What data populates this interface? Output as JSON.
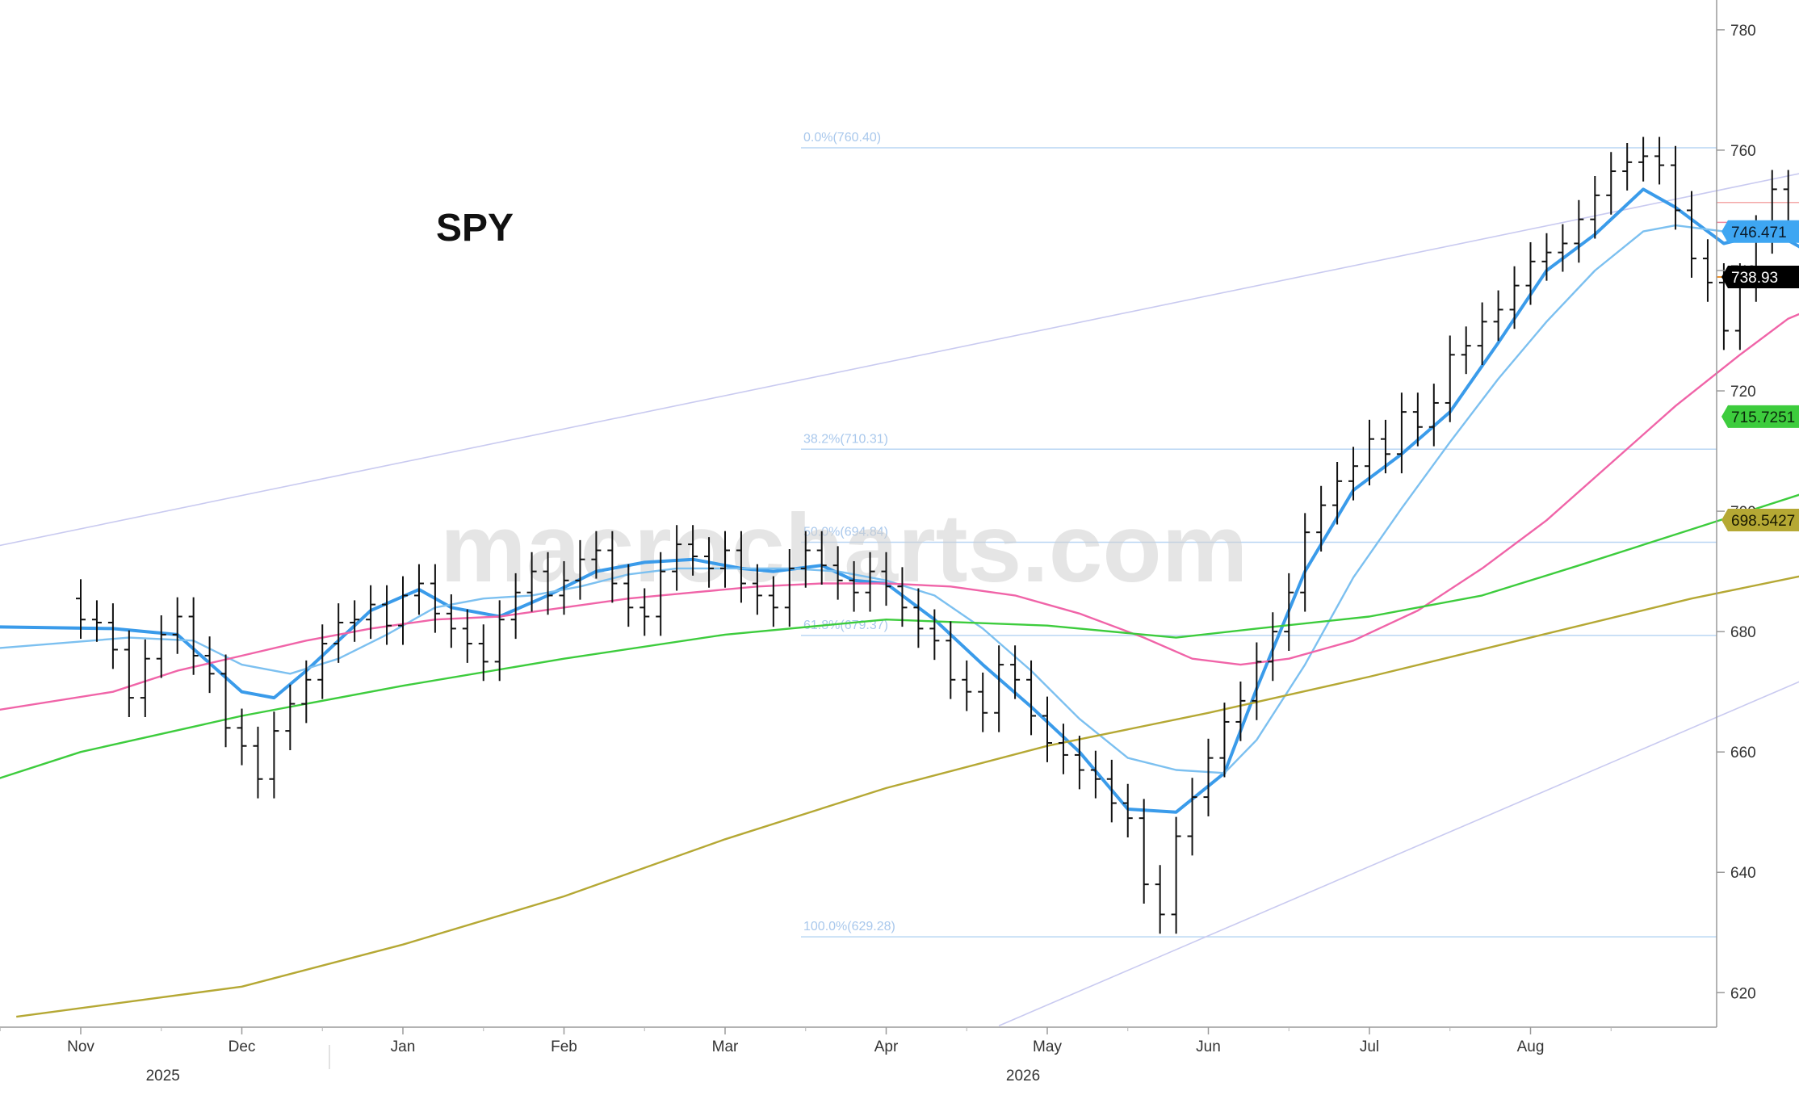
{
  "watermark": "macrocharts.com",
  "chart_data": {
    "type": "line",
    "title": "SPY",
    "ylim": [
      614,
      782
    ],
    "y_ticks": [
      620,
      640,
      660,
      680,
      700,
      720,
      740,
      760,
      780
    ],
    "x_month_labels": [
      "Nov",
      "Dec",
      "Jan",
      "Feb",
      "Mar",
      "Apr",
      "May",
      "Jun",
      "Jul",
      "Aug"
    ],
    "x_year_labels": [
      "2025",
      "2026"
    ],
    "grid": false,
    "price_bars": {
      "name": "SPY price bars",
      "close": [
        [
          -1.1,
          685.5
        ],
        [
          0.0,
          682.0
        ],
        [
          0.1,
          681.5
        ],
        [
          0.2,
          677.0
        ],
        [
          0.3,
          669.0
        ],
        [
          0.4,
          675.5
        ],
        [
          0.5,
          679.5
        ],
        [
          0.6,
          682.5
        ],
        [
          0.7,
          676.0
        ],
        [
          0.8,
          673.0
        ],
        [
          0.9,
          664.0
        ],
        [
          1.0,
          661.0
        ],
        [
          1.1,
          655.5
        ],
        [
          1.2,
          663.5
        ],
        [
          1.3,
          668.0
        ],
        [
          1.4,
          672.0
        ],
        [
          1.5,
          678.0
        ],
        [
          1.6,
          681.5
        ],
        [
          1.7,
          682.0
        ],
        [
          1.8,
          684.5
        ],
        [
          1.9,
          681.0
        ],
        [
          2.0,
          686.0
        ],
        [
          2.1,
          688.0
        ],
        [
          2.2,
          683.0
        ],
        [
          2.3,
          680.5
        ],
        [
          2.4,
          678.0
        ],
        [
          2.5,
          675.0
        ],
        [
          2.6,
          682.0
        ],
        [
          2.7,
          686.5
        ],
        [
          2.8,
          690.0
        ],
        [
          2.9,
          686.0
        ],
        [
          3.0,
          688.5
        ],
        [
          3.1,
          692.0
        ],
        [
          3.2,
          693.5
        ],
        [
          3.3,
          688.0
        ],
        [
          3.4,
          684.0
        ],
        [
          3.5,
          682.5
        ],
        [
          3.6,
          690.0
        ],
        [
          3.7,
          694.5
        ],
        [
          3.8,
          692.5
        ],
        [
          3.9,
          690.5
        ],
        [
          4.0,
          693.5
        ],
        [
          4.1,
          688.0
        ],
        [
          4.2,
          686.0
        ],
        [
          4.3,
          684.0
        ],
        [
          4.4,
          690.5
        ],
        [
          4.5,
          693.5
        ],
        [
          4.6,
          691.0
        ],
        [
          4.7,
          688.5
        ],
        [
          4.8,
          686.5
        ],
        [
          4.9,
          690.0
        ],
        [
          5.0,
          687.5
        ],
        [
          5.1,
          684.0
        ],
        [
          5.2,
          680.5
        ],
        [
          5.3,
          678.5
        ],
        [
          5.4,
          672.0
        ],
        [
          5.5,
          670.0
        ],
        [
          5.6,
          666.5
        ],
        [
          5.7,
          674.5
        ],
        [
          5.8,
          672.0
        ],
        [
          5.9,
          666.0
        ],
        [
          6.0,
          661.5
        ],
        [
          6.1,
          659.5
        ],
        [
          6.2,
          657.0
        ],
        [
          6.3,
          655.5
        ],
        [
          6.4,
          651.5
        ],
        [
          6.5,
          649.0
        ],
        [
          6.6,
          638.0
        ],
        [
          6.7,
          633.0
        ],
        [
          6.8,
          646.0
        ],
        [
          6.9,
          652.5
        ],
        [
          7.0,
          659.0
        ],
        [
          7.1,
          665.0
        ],
        [
          7.2,
          668.5
        ],
        [
          7.3,
          675.0
        ],
        [
          7.4,
          680.0
        ],
        [
          7.5,
          686.5
        ],
        [
          7.6,
          696.5
        ],
        [
          7.7,
          701.0
        ],
        [
          7.8,
          705.0
        ],
        [
          7.9,
          707.5
        ],
        [
          8.0,
          712.0
        ],
        [
          8.1,
          709.5
        ],
        [
          8.2,
          716.5
        ],
        [
          8.3,
          714.0
        ],
        [
          8.4,
          718.0
        ],
        [
          8.5,
          726.0
        ],
        [
          8.6,
          727.5
        ],
        [
          8.7,
          731.5
        ],
        [
          8.8,
          733.5
        ],
        [
          8.9,
          737.5
        ],
        [
          9.0,
          741.5
        ],
        [
          9.1,
          743.0
        ],
        [
          9.2,
          744.5
        ],
        [
          9.3,
          748.5
        ],
        [
          9.4,
          752.5
        ],
        [
          9.5,
          756.5
        ],
        [
          9.6,
          758.0
        ],
        [
          9.7,
          759.0
        ],
        [
          9.8,
          757.5
        ],
        [
          9.9,
          750.0
        ],
        [
          10.0,
          742.0
        ],
        [
          10.1,
          738.0
        ],
        [
          10.2,
          730.0
        ],
        [
          10.3,
          738.0
        ],
        [
          10.4,
          746.0
        ],
        [
          10.5,
          753.5
        ],
        [
          10.6,
          748.0
        ],
        [
          10.7,
          742.0
        ],
        [
          10.8,
          735.0
        ],
        [
          10.9,
          733.0
        ],
        [
          11.0,
          728.0
        ],
        [
          11.1,
          735.0
        ],
        [
          11.2,
          742.5
        ],
        [
          11.3,
          748.0
        ],
        [
          11.4,
          746.0
        ],
        [
          11.5,
          749.5
        ],
        [
          11.6,
          748.0
        ],
        [
          11.7,
          753.0
        ],
        [
          11.8,
          754.5
        ],
        [
          11.9,
          749.5
        ],
        [
          12.0,
          747.5
        ],
        [
          12.1,
          745.5
        ],
        [
          12.2,
          748.5
        ],
        [
          12.3,
          747.0
        ],
        [
          12.4,
          744.0
        ],
        [
          12.5,
          736.5
        ],
        [
          12.6,
          738.93
        ]
      ]
    },
    "series": [
      {
        "name": "",
        "color": "#3a9bea",
        "points": [
          [
            -1.1,
            681.0
          ],
          [
            0.2,
            680.5
          ],
          [
            0.6,
            679.5
          ],
          [
            1.0,
            670.0
          ],
          [
            1.2,
            669.0
          ],
          [
            1.4,
            673.5
          ],
          [
            1.8,
            683.5
          ],
          [
            2.1,
            687.0
          ],
          [
            2.3,
            684.0
          ],
          [
            2.6,
            682.5
          ],
          [
            2.9,
            686.0
          ],
          [
            3.2,
            690.0
          ],
          [
            3.5,
            691.5
          ],
          [
            3.8,
            692.0
          ],
          [
            4.1,
            690.5
          ],
          [
            4.3,
            690.0
          ],
          [
            4.6,
            691.0
          ],
          [
            4.8,
            688.5
          ],
          [
            5.0,
            688.0
          ],
          [
            5.3,
            682.0
          ],
          [
            5.6,
            674.5
          ],
          [
            5.9,
            667.5
          ],
          [
            6.2,
            660.0
          ],
          [
            6.5,
            650.5
          ],
          [
            6.8,
            650.0
          ],
          [
            7.1,
            656.5
          ],
          [
            7.3,
            670.5
          ],
          [
            7.6,
            690.0
          ],
          [
            7.9,
            703.5
          ],
          [
            8.2,
            709.5
          ],
          [
            8.5,
            716.5
          ],
          [
            8.8,
            728.0
          ],
          [
            9.1,
            740.0
          ],
          [
            9.4,
            746.0
          ],
          [
            9.7,
            753.5
          ],
          [
            9.9,
            750.5
          ],
          [
            10.2,
            744.5
          ],
          [
            10.5,
            746.5
          ],
          [
            10.8,
            742.0
          ],
          [
            11.1,
            741.0
          ],
          [
            11.4,
            745.5
          ],
          [
            11.7,
            749.5
          ],
          [
            12.0,
            748.0
          ],
          [
            12.3,
            748.5
          ],
          [
            12.6,
            744.5
          ]
        ]
      },
      {
        "name": "",
        "color": "#7cc0f0",
        "points": [
          [
            -1.1,
            676.0
          ],
          [
            0.3,
            679.0
          ],
          [
            0.7,
            678.5
          ],
          [
            1.0,
            674.5
          ],
          [
            1.3,
            673.0
          ],
          [
            1.6,
            675.5
          ],
          [
            1.9,
            679.5
          ],
          [
            2.2,
            684.0
          ],
          [
            2.5,
            685.5
          ],
          [
            2.8,
            686.0
          ],
          [
            3.1,
            687.5
          ],
          [
            3.4,
            689.5
          ],
          [
            3.7,
            690.5
          ],
          [
            4.0,
            690.5
          ],
          [
            4.4,
            690.5
          ],
          [
            4.7,
            690.0
          ],
          [
            5.0,
            688.5
          ],
          [
            5.3,
            686.0
          ],
          [
            5.6,
            680.5
          ],
          [
            5.9,
            673.5
          ],
          [
            6.2,
            665.5
          ],
          [
            6.5,
            659.0
          ],
          [
            6.8,
            657.0
          ],
          [
            7.1,
            656.5
          ],
          [
            7.3,
            662.0
          ],
          [
            7.6,
            674.5
          ],
          [
            7.9,
            689.0
          ],
          [
            8.2,
            700.5
          ],
          [
            8.5,
            711.5
          ],
          [
            8.8,
            722.0
          ],
          [
            9.1,
            731.5
          ],
          [
            9.4,
            740.0
          ],
          [
            9.7,
            746.5
          ],
          [
            9.9,
            747.5
          ],
          [
            10.2,
            746.5
          ],
          [
            10.5,
            746.5
          ],
          [
            10.8,
            745.5
          ],
          [
            11.1,
            742.0
          ],
          [
            11.4,
            742.5
          ],
          [
            11.7,
            744.5
          ],
          [
            12.0,
            744.5
          ],
          [
            12.3,
            744.5
          ],
          [
            12.6,
            744.5
          ]
        ]
      },
      {
        "name": "",
        "color": "#f064a8",
        "points": [
          [
            -1.1,
            664.5
          ],
          [
            0.2,
            670.0
          ],
          [
            0.6,
            673.5
          ],
          [
            1.0,
            676.0
          ],
          [
            1.4,
            678.5
          ],
          [
            1.8,
            680.5
          ],
          [
            2.2,
            682.0
          ],
          [
            2.6,
            682.5
          ],
          [
            3.0,
            684.0
          ],
          [
            3.4,
            685.5
          ],
          [
            3.8,
            686.5
          ],
          [
            4.2,
            687.5
          ],
          [
            4.6,
            688.0
          ],
          [
            5.0,
            688.0
          ],
          [
            5.4,
            687.5
          ],
          [
            5.8,
            686.0
          ],
          [
            6.2,
            683.0
          ],
          [
            6.6,
            679.0
          ],
          [
            6.9,
            675.5
          ],
          [
            7.2,
            674.5
          ],
          [
            7.5,
            675.5
          ],
          [
            7.9,
            678.5
          ],
          [
            8.3,
            683.5
          ],
          [
            8.7,
            690.5
          ],
          [
            9.1,
            698.5
          ],
          [
            9.5,
            708.0
          ],
          [
            9.9,
            717.5
          ],
          [
            10.3,
            726.0
          ],
          [
            10.6,
            732.0
          ],
          [
            11.0,
            736.5
          ],
          [
            11.4,
            740.0
          ],
          [
            11.8,
            742.0
          ],
          [
            12.2,
            744.0
          ],
          [
            12.6,
            744.0
          ]
        ]
      },
      {
        "name": "",
        "color": "#3dcc3d",
        "points": [
          [
            -1.1,
            650.5
          ],
          [
            0.0,
            660.0
          ],
          [
            1.0,
            666.0
          ],
          [
            2.0,
            671.0
          ],
          [
            3.0,
            675.5
          ],
          [
            4.0,
            679.5
          ],
          [
            5.0,
            682.0
          ],
          [
            6.0,
            681.0
          ],
          [
            6.8,
            679.0
          ],
          [
            7.3,
            680.5
          ],
          [
            8.0,
            682.5
          ],
          [
            8.7,
            686.0
          ],
          [
            9.3,
            691.0
          ],
          [
            10.0,
            697.0
          ],
          [
            10.7,
            703.0
          ],
          [
            11.4,
            708.0
          ],
          [
            12.0,
            712.5
          ],
          [
            12.6,
            715.7251
          ]
        ]
      },
      {
        "name": "",
        "color": "#b5a834",
        "points": [
          [
            -0.4,
            616.0
          ],
          [
            1.0,
            621.0
          ],
          [
            2.0,
            628.0
          ],
          [
            3.0,
            636.0
          ],
          [
            4.0,
            645.5
          ],
          [
            5.0,
            654.0
          ],
          [
            6.0,
            661.0
          ],
          [
            7.0,
            666.5
          ],
          [
            8.0,
            672.5
          ],
          [
            9.0,
            679.0
          ],
          [
            10.0,
            685.5
          ],
          [
            11.0,
            691.0
          ],
          [
            12.0,
            695.5
          ],
          [
            12.6,
            698.5427
          ]
        ]
      }
    ],
    "channel_lines": [
      [
        [
          -1.1,
          691.0
        ],
        [
          13.0,
          769.0
        ]
      ],
      [
        [
          5.7,
          614.5
        ],
        [
          13.0,
          698.5
        ]
      ]
    ],
    "fib_levels": [
      {
        "label": "0.0%(760.40)",
        "value": 760.4
      },
      {
        "label": "38.2%(710.31)",
        "value": 710.31
      },
      {
        "label": "50.0%(694.84)",
        "value": 694.84
      },
      {
        "label": "61.8%(679.37)",
        "value": 679.37
      },
      {
        "label": "100.0%(629.28)",
        "value": 629.28
      }
    ],
    "annotations": {
      "upper_resistance": 751.3,
      "current_level_line": 748.0
    },
    "price_tags": [
      {
        "label": "746.471",
        "value": 746.471,
        "bg": "#3ea6f2",
        "fg": "#0b1b2a"
      },
      {
        "label": "738.93",
        "value": 738.93,
        "bg": "#000000",
        "fg": "#ffffff"
      },
      {
        "label": "715.7251",
        "value": 715.7251,
        "bg": "#3dcc3d",
        "fg": "#0a2a0a"
      },
      {
        "label": "698.5427",
        "value": 698.5427,
        "bg": "#b5a834",
        "fg": "#1a1a00"
      }
    ],
    "last_dot": {
      "value": 744.0,
      "color": "#e81a1a"
    }
  }
}
